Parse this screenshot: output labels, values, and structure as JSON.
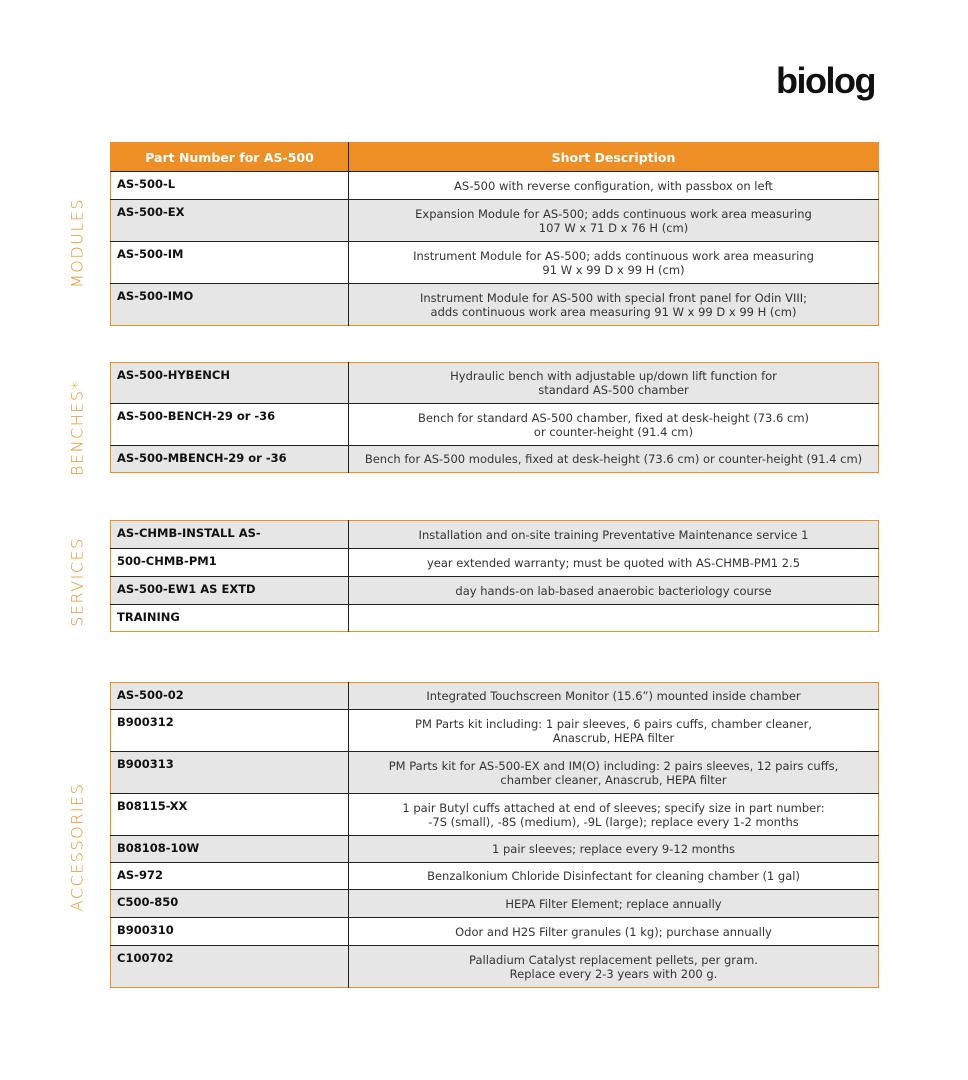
{
  "logo": "biolog",
  "header": {
    "col1": "Part Number for AS-500",
    "col2": "Short Description"
  },
  "sections": {
    "modules": {
      "label": "MODULES",
      "rows": [
        {
          "part": "AS-500-L",
          "desc": "AS-500 with reverse configuration, with passbox on left"
        },
        {
          "part": "AS-500-EX",
          "desc": "Expansion Module for AS-500; adds continuous work area measuring\n107 W x 71 D x 76 H (cm)"
        },
        {
          "part": "AS-500-IM",
          "desc": "Instrument Module for AS-500; adds continuous work area measuring\n91 W x 99 D x 99 H (cm)"
        },
        {
          "part": "AS-500-IMO",
          "desc": "Instrument Module for AS-500 with special front panel for Odin VIII;\nadds continuous work area measuring 91 W x 99 D x 99 H (cm)"
        }
      ]
    },
    "benches": {
      "label": "BENCHES*",
      "rows": [
        {
          "part": "AS-500-HYBENCH",
          "desc": "Hydraulic bench with adjustable up/down lift function for\nstandard AS-500 chamber"
        },
        {
          "part": "AS-500-BENCH-29 or -36",
          "desc": "Bench for standard AS-500 chamber, fixed at desk-height (73.6 cm)\nor counter-height (91.4 cm)"
        },
        {
          "part": "AS-500-MBENCH-29 or -36",
          "desc": "Bench for AS-500 modules, fixed at desk-height (73.6 cm) or counter-height (91.4 cm)"
        }
      ]
    },
    "services": {
      "label": "SERVICES",
      "rows": [
        {
          "part": "AS-CHMB-INSTALL AS-",
          "desc": "Installation and on-site training Preventative Maintenance service 1"
        },
        {
          "part": "500-CHMB-PM1",
          "desc": "year extended warranty; must be quoted with AS-CHMB-PM1 2.5"
        },
        {
          "part": "AS-500-EW1 AS EXTD",
          "desc": "day hands-on lab-based anaerobic bacteriology course"
        },
        {
          "part": "TRAINING",
          "desc": ""
        }
      ]
    },
    "accessories": {
      "label": "ACCESSORIES",
      "rows": [
        {
          "part": "AS-500-02",
          "desc": "Integrated Touchscreen Monitor (15.6”) mounted inside chamber"
        },
        {
          "part": "B900312",
          "desc": "PM Parts kit including: 1 pair sleeves, 6 pairs cuffs, chamber cleaner,\nAnascrub, HEPA filter"
        },
        {
          "part": "B900313",
          "desc": "PM Parts kit for AS-500-EX and IM(O) including: 2 pairs sleeves, 12 pairs cuffs,\nchamber cleaner, Anascrub, HEPA filter"
        },
        {
          "part": "B08115-XX",
          "desc": "1 pair Butyl cuffs attached at end of sleeves; specify size in part number:\n-7S (small), -8S (medium), -9L (large); replace every 1-2 months"
        },
        {
          "part": "B08108-10W",
          "desc": "1 pair sleeves; replace every 9-12 months"
        },
        {
          "part": "AS-972",
          "desc": "Benzalkonium Chloride Disinfectant for cleaning chamber (1 gal)"
        },
        {
          "part": "C500-850",
          "desc": "HEPA Filter Element; replace annually"
        },
        {
          "part": "B900310",
          "desc": "Odor and H2S Filter granules (1 kg); purchase annually"
        },
        {
          "part": "C100702",
          "desc": "Palladium Catalyst replacement pellets, per gram.\nReplace every 2-3 years with 200 g."
        }
      ]
    }
  },
  "colors": {
    "accent": "#ee8f26",
    "row_alt": "#e6e6e6"
  }
}
